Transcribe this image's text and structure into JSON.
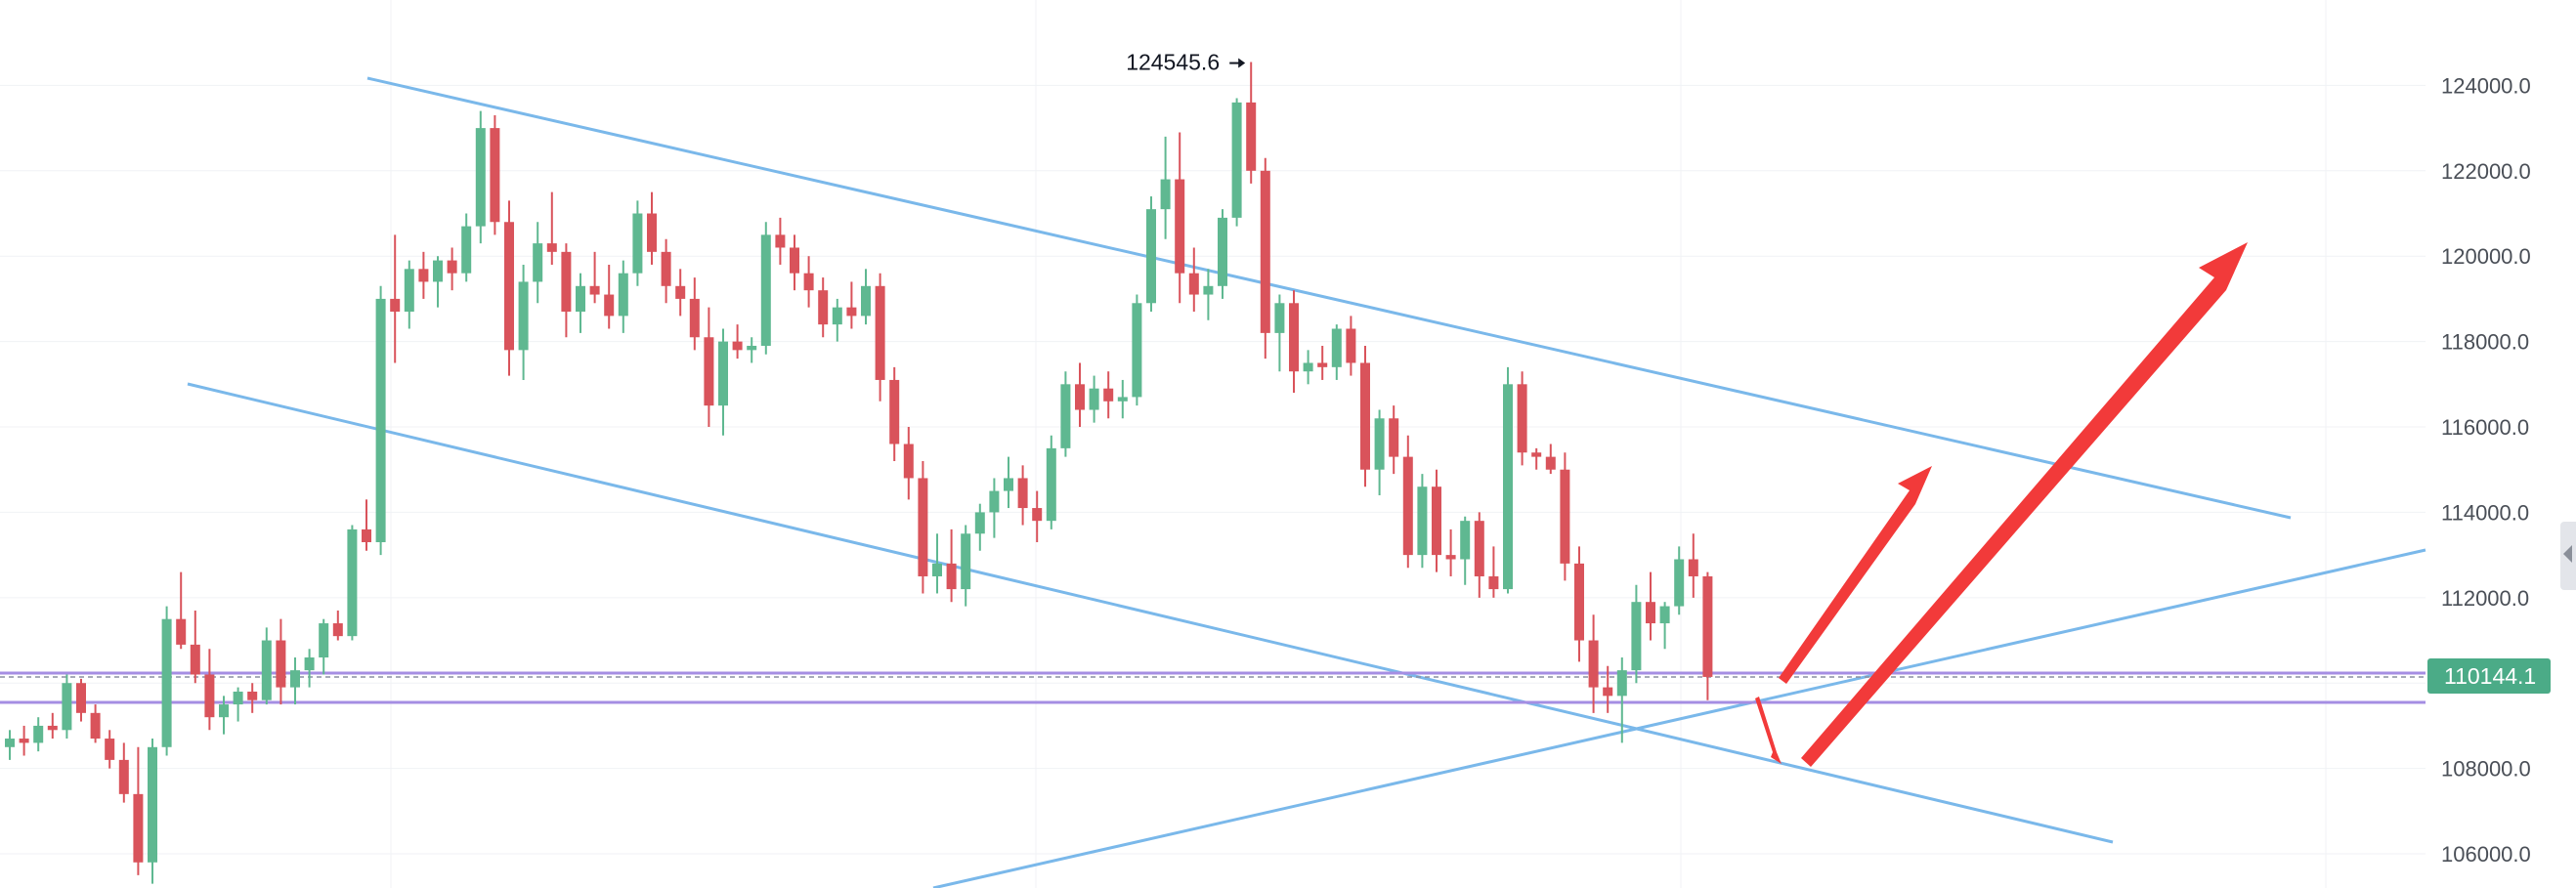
{
  "chart_data": {
    "type": "candlestick",
    "title": "",
    "price_axis": {
      "ticks": [
        "124000.0",
        "122000.0",
        "120000.0",
        "118000.0",
        "116000.0",
        "114000.0",
        "112000.0",
        "108000.0",
        "106000.0"
      ],
      "range": [
        105200,
        126000
      ],
      "side": "right"
    },
    "grid": true,
    "current_price": {
      "label": "110144.1",
      "value": 110144.1,
      "color": "#4bab87"
    },
    "high_marker": {
      "label": "124545.6",
      "value": 124545.6
    },
    "colors": {
      "up": "#5fb891",
      "down": "#d9535b",
      "trendline": "#7ab8ea",
      "level": "#a58ee3",
      "arrow": "#f23a3a"
    },
    "candles_ohlc": [
      [
        108500,
        108900,
        108200,
        108700
      ],
      [
        108700,
        109000,
        108300,
        108600
      ],
      [
        108600,
        109200,
        108400,
        109000
      ],
      [
        109000,
        109300,
        108700,
        108900
      ],
      [
        108900,
        110200,
        108700,
        110000
      ],
      [
        110000,
        110100,
        109100,
        109300
      ],
      [
        109300,
        109500,
        108600,
        108700
      ],
      [
        108700,
        108900,
        108000,
        108200
      ],
      [
        108200,
        108600,
        107200,
        107400
      ],
      [
        107400,
        108500,
        105500,
        105800
      ],
      [
        105800,
        108700,
        105300,
        108500
      ],
      [
        108500,
        111800,
        108300,
        111500
      ],
      [
        111500,
        112600,
        110800,
        110900
      ],
      [
        110900,
        111700,
        110000,
        110200
      ],
      [
        110200,
        110800,
        108900,
        109200
      ],
      [
        109200,
        109700,
        108800,
        109500
      ],
      [
        109500,
        109900,
        109100,
        109800
      ],
      [
        109800,
        110000,
        109300,
        109600
      ],
      [
        109600,
        111300,
        109500,
        111000
      ],
      [
        111000,
        111500,
        109500,
        109900
      ],
      [
        109900,
        110600,
        109500,
        110300
      ],
      [
        110300,
        110800,
        109900,
        110600
      ],
      [
        110600,
        111500,
        110200,
        111400
      ],
      [
        111400,
        111700,
        111000,
        111100
      ],
      [
        111100,
        113700,
        111000,
        113600
      ],
      [
        113600,
        114300,
        113100,
        113300
      ],
      [
        113300,
        119300,
        113000,
        119000
      ],
      [
        119000,
        120500,
        117500,
        118700
      ],
      [
        118700,
        119900,
        118300,
        119700
      ],
      [
        119700,
        120100,
        119000,
        119400
      ],
      [
        119400,
        120000,
        118800,
        119900
      ],
      [
        119900,
        120200,
        119200,
        119600
      ],
      [
        119600,
        121000,
        119400,
        120700
      ],
      [
        120700,
        123400,
        120300,
        123000
      ],
      [
        123000,
        123300,
        120500,
        120800
      ],
      [
        120800,
        121300,
        117200,
        117800
      ],
      [
        117800,
        119800,
        117100,
        119400
      ],
      [
        119400,
        120800,
        118900,
        120300
      ],
      [
        120300,
        121500,
        119800,
        120100
      ],
      [
        120100,
        120300,
        118100,
        118700
      ],
      [
        118700,
        119600,
        118200,
        119300
      ],
      [
        119300,
        120100,
        118900,
        119100
      ],
      [
        119100,
        119800,
        118300,
        118600
      ],
      [
        118600,
        119900,
        118200,
        119600
      ],
      [
        119600,
        121300,
        119300,
        121000
      ],
      [
        121000,
        121500,
        119800,
        120100
      ],
      [
        120100,
        120400,
        118900,
        119300
      ],
      [
        119300,
        119700,
        118600,
        119000
      ],
      [
        119000,
        119500,
        117800,
        118100
      ],
      [
        118100,
        118800,
        116000,
        116500
      ],
      [
        116500,
        118300,
        115800,
        118000
      ],
      [
        118000,
        118400,
        117600,
        117800
      ],
      [
        117800,
        118100,
        117500,
        117900
      ],
      [
        117900,
        120800,
        117700,
        120500
      ],
      [
        120500,
        120900,
        119800,
        120200
      ],
      [
        120200,
        120500,
        119200,
        119600
      ],
      [
        119600,
        120000,
        118800,
        119200
      ],
      [
        119200,
        119500,
        118100,
        118400
      ],
      [
        118400,
        119000,
        118000,
        118800
      ],
      [
        118800,
        119400,
        118300,
        118600
      ],
      [
        118600,
        119700,
        118400,
        119300
      ],
      [
        119300,
        119600,
        116600,
        117100
      ],
      [
        117100,
        117400,
        115200,
        115600
      ],
      [
        115600,
        116000,
        114300,
        114800
      ],
      [
        114800,
        115200,
        112100,
        112500
      ],
      [
        112500,
        113500,
        112100,
        112800
      ],
      [
        112800,
        113600,
        111900,
        112200
      ],
      [
        112200,
        113700,
        111800,
        113500
      ],
      [
        113500,
        114200,
        113100,
        114000
      ],
      [
        114000,
        114800,
        113400,
        114500
      ],
      [
        114500,
        115300,
        114100,
        114800
      ],
      [
        114800,
        115100,
        113700,
        114100
      ],
      [
        114100,
        114500,
        113300,
        113800
      ],
      [
        113800,
        115800,
        113600,
        115500
      ],
      [
        115500,
        117300,
        115300,
        117000
      ],
      [
        117000,
        117500,
        116000,
        116400
      ],
      [
        116400,
        117200,
        116100,
        116900
      ],
      [
        116900,
        117300,
        116200,
        116600
      ],
      [
        116600,
        117100,
        116200,
        116700
      ],
      [
        116700,
        119100,
        116500,
        118900
      ],
      [
        118900,
        121400,
        118700,
        121100
      ],
      [
        121100,
        122800,
        120400,
        121800
      ],
      [
        121800,
        122900,
        118900,
        119600
      ],
      [
        119600,
        120200,
        118700,
        119100
      ],
      [
        119100,
        119700,
        118500,
        119300
      ],
      [
        119300,
        121100,
        119000,
        120900
      ],
      [
        120900,
        123700,
        120700,
        123600
      ],
      [
        123600,
        124545.6,
        121700,
        122000
      ],
      [
        122000,
        122300,
        117600,
        118200
      ],
      [
        118200,
        119100,
        117300,
        118900
      ],
      [
        118900,
        119200,
        116800,
        117300
      ],
      [
        117300,
        117800,
        117000,
        117500
      ],
      [
        117500,
        117900,
        117100,
        117400
      ],
      [
        117400,
        118400,
        117100,
        118300
      ],
      [
        118300,
        118600,
        117200,
        117500
      ],
      [
        117500,
        117900,
        114600,
        115000
      ],
      [
        115000,
        116400,
        114400,
        116200
      ],
      [
        116200,
        116500,
        114900,
        115300
      ],
      [
        115300,
        115800,
        112700,
        113000
      ],
      [
        113000,
        114900,
        112700,
        114600
      ],
      [
        114600,
        115000,
        112600,
        113000
      ],
      [
        113000,
        113600,
        112500,
        112900
      ],
      [
        112900,
        113900,
        112300,
        113800
      ],
      [
        113800,
        114000,
        112000,
        112500
      ],
      [
        112500,
        113200,
        112000,
        112200
      ],
      [
        112200,
        117400,
        112100,
        117000
      ],
      [
        117000,
        117300,
        115100,
        115400
      ],
      [
        115400,
        115500,
        115000,
        115300
      ],
      [
        115300,
        115600,
        114900,
        115000
      ],
      [
        115000,
        115400,
        112400,
        112800
      ],
      [
        112800,
        113200,
        110500,
        111000
      ],
      [
        111000,
        111600,
        109300,
        109900
      ],
      [
        109900,
        110400,
        109300,
        109700
      ],
      [
        109700,
        110600,
        108600,
        110300
      ],
      [
        110300,
        112300,
        110000,
        111900
      ],
      [
        111900,
        112600,
        111000,
        111400
      ],
      [
        111400,
        111900,
        110800,
        111800
      ],
      [
        111800,
        113200,
        111600,
        112900
      ],
      [
        112900,
        113500,
        112000,
        112500
      ],
      [
        112500,
        112600,
        109600,
        110144.1
      ]
    ]
  }
}
